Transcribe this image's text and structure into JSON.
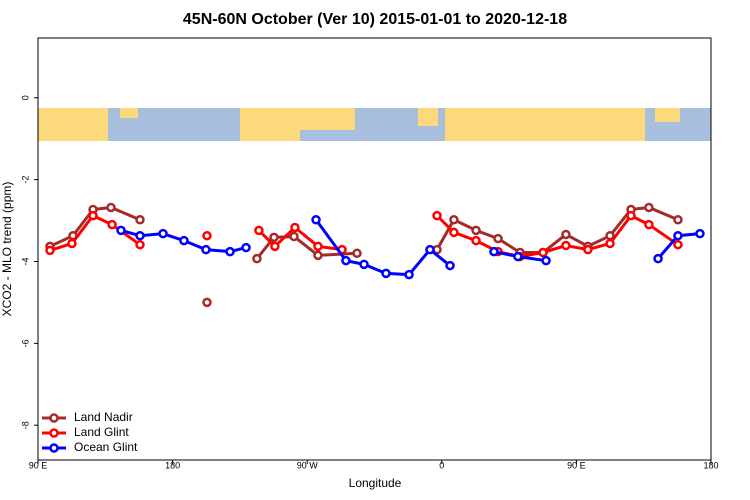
{
  "chart_data": {
    "type": "line",
    "title": "45N-60N October (Ver 10)   2015-01-01 to 2020-12-18",
    "x_label": "Longitude",
    "y_label": "XCO2 - MLO trend (ppm)",
    "xlim": [
      90,
      540
    ],
    "ylim": [
      -8.85,
      1.46
    ],
    "xticks": [
      {
        "value": 90,
        "label": "90 E"
      },
      180,
      {
        "value": 270,
        "label": "90 W"
      },
      {
        "value": 360,
        "label": "0"
      },
      {
        "value": 450,
        "label": "90 E"
      },
      {
        "value": 540,
        "label": "180"
      }
    ],
    "yticks": [
      0,
      -2,
      -4,
      -6,
      -8
    ],
    "grid": false,
    "legend": "bottom-left",
    "series": [
      {
        "name": "Land Nadir",
        "color": "#a52a2a",
        "x": [
          98.0,
          113.4,
          126.8,
          138.8,
          158.2,
          null,
          203.0,
          null,
          236.4,
          247.8,
          261.2,
          277.2,
          303.3,
          null,
          356.8,
          368.1,
          382.9,
          397.6,
          412.3,
          427.7,
          443.0,
          457.7,
          472.5,
          486.5,
          498.5,
          517.9
        ],
        "values": [
          -3.63,
          -3.37,
          -2.73,
          -2.68,
          -2.98,
          null,
          -5.0,
          null,
          -3.93,
          -3.41,
          -3.39,
          -3.85,
          -3.8,
          null,
          -3.71,
          -2.98,
          -3.24,
          -3.44,
          -3.78,
          -3.78,
          -3.34,
          -3.63,
          -3.37,
          -2.73,
          -2.68,
          -2.98
        ]
      },
      {
        "name": "Land Glint",
        "color": "#ff0000",
        "x": [
          98.0,
          112.7,
          126.8,
          139.5,
          158.2,
          null,
          203.0,
          null,
          237.7,
          248.4,
          261.8,
          277.2,
          293.3,
          null,
          356.8,
          368.1,
          382.9,
          397.6,
          412.3,
          427.7,
          443.0,
          457.7,
          472.5,
          486.5,
          498.5,
          517.9
        ],
        "values": [
          -3.73,
          -3.56,
          -2.88,
          -3.1,
          -3.59,
          null,
          -3.37,
          null,
          -3.24,
          -3.63,
          -3.17,
          -3.63,
          -3.71,
          null,
          -2.88,
          -3.29,
          -3.49,
          -3.76,
          -3.88,
          -3.78,
          -3.61,
          -3.71,
          -3.56,
          -2.88,
          -3.1,
          -3.59
        ]
      },
      {
        "name": "Ocean Glint",
        "color": "#0000ff",
        "x": [
          145.5,
          158.2,
          173.6,
          187.6,
          202.3,
          218.4,
          229.1,
          null,
          275.9,
          295.9,
          308.0,
          322.7,
          338.1,
          352.1,
          365.5,
          null,
          394.9,
          410.9,
          429.7,
          null,
          504.6,
          517.9,
          532.6
        ],
        "values": [
          -3.24,
          -3.37,
          -3.32,
          -3.49,
          -3.71,
          -3.76,
          -3.66,
          null,
          -2.98,
          -3.98,
          -4.07,
          -4.29,
          -4.32,
          -3.71,
          -4.1,
          null,
          -3.76,
          -3.88,
          -3.98,
          null,
          -3.93,
          -3.37,
          -3.32
        ]
      }
    ]
  }
}
